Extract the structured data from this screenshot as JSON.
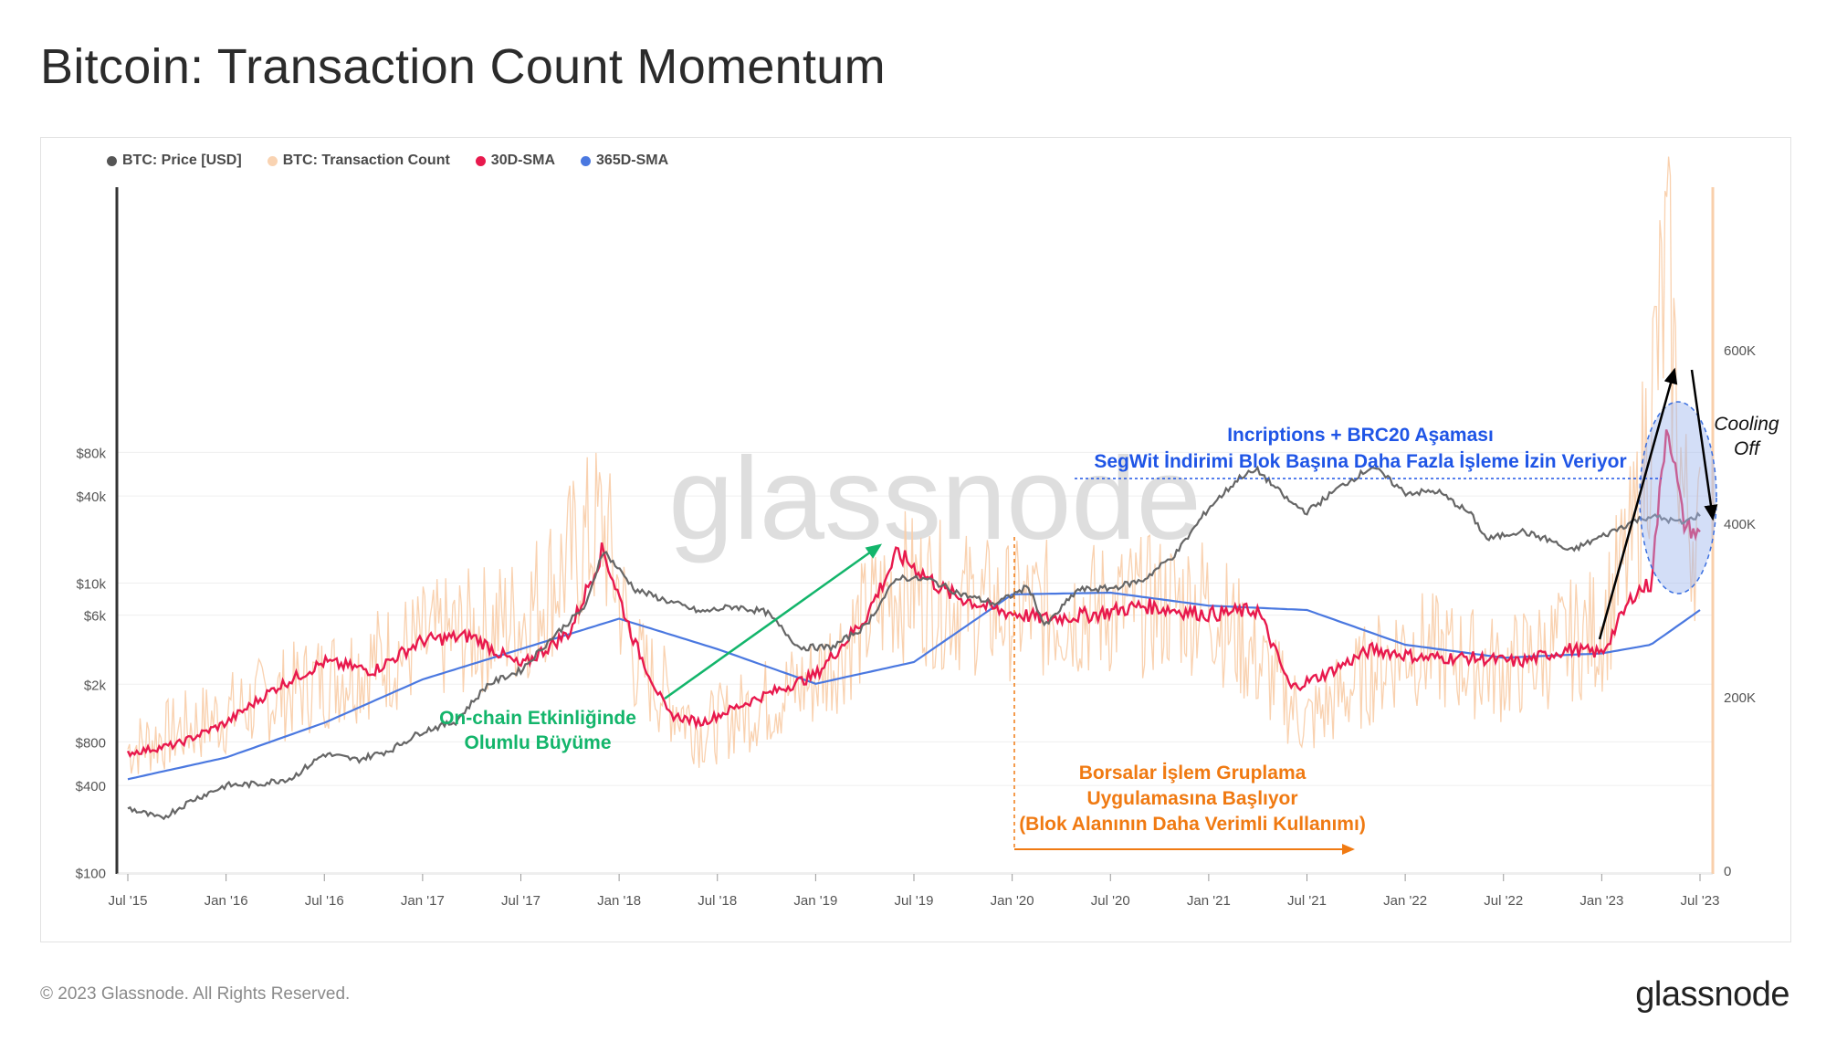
{
  "title": "Bitcoin: Transaction Count Momentum",
  "footer": {
    "copyright": "© 2023 Glassnode. All Rights Reserved.",
    "logo": "glassnode"
  },
  "watermark": "glassnode",
  "legend": [
    {
      "label": "BTC: Price [USD]",
      "color": "#555555"
    },
    {
      "label": "BTC: Transaction Count",
      "color": "#f9d3b2"
    },
    {
      "label": "30D-SMA",
      "color": "#e8194d"
    },
    {
      "label": "365D-SMA",
      "color": "#4a78e0"
    }
  ],
  "colors": {
    "price": "#666666",
    "tx": "#f9cfab",
    "sma30": "#e8194d",
    "sma365": "#4a78e0",
    "green": "#13b56b",
    "blue_text": "#1f55e6",
    "orange": "#f07a12"
  },
  "annotations": {
    "green_line1": "On-chain Etkinliğinde",
    "green_line2": "Olumlu Büyüme",
    "orange_line1": "Borsalar İşlem Gruplama",
    "orange_line2": "Uygulamasına Başlıyor",
    "orange_line3": "(Blok Alanının Daha Verimli Kullanımı)",
    "blue_line1": "Incriptions + BRC20 Aşaması",
    "blue_line2": "SegWit İndirimi Blok Başına Daha Fazla İşleme İzin Veriyor",
    "cooling_line1": "Cooling",
    "cooling_line2": "Off"
  },
  "chart_data": {
    "type": "line",
    "x_ticks": [
      "Jul '15",
      "Jan '16",
      "Jul '16",
      "Jan '17",
      "Jul '17",
      "Jan '18",
      "Jul '18",
      "Jan '19",
      "Jul '19",
      "Jan '20",
      "Jul '20",
      "Jan '21",
      "Jul '21",
      "Jan '22",
      "Jul '22",
      "Jan '23",
      "Jul '23"
    ],
    "y_left_ticks": [
      "$80k",
      "$40k",
      "$10k",
      "$6k",
      "$2k",
      "$800",
      "$400",
      "$100"
    ],
    "y_left_scale": "log",
    "y_right_ticks": [
      "600K",
      "400K",
      "200K",
      "0"
    ],
    "xlim": [
      "2015-07",
      "2023-07"
    ],
    "ylim_right": [
      0,
      800000
    ],
    "series": [
      {
        "name": "BTC: Price [USD]",
        "axis": "left",
        "x": [
          "2015-07",
          "2015-09",
          "2015-11",
          "2016-01",
          "2016-03",
          "2016-05",
          "2016-07",
          "2016-09",
          "2016-11",
          "2017-01",
          "2017-03",
          "2017-05",
          "2017-07",
          "2017-09",
          "2017-11",
          "2017-12",
          "2018-02",
          "2018-04",
          "2018-06",
          "2018-08",
          "2018-10",
          "2018-12",
          "2019-02",
          "2019-04",
          "2019-06",
          "2019-08",
          "2019-10",
          "2019-12",
          "2020-02",
          "2020-03",
          "2020-05",
          "2020-07",
          "2020-09",
          "2020-11",
          "2021-01",
          "2021-03",
          "2021-04",
          "2021-06",
          "2021-07",
          "2021-09",
          "2021-11",
          "2022-01",
          "2022-03",
          "2022-05",
          "2022-06",
          "2022-08",
          "2022-10",
          "2022-11",
          "2023-01",
          "2023-03",
          "2023-04",
          "2023-06",
          "2023-07"
        ],
        "values": [
          280,
          235,
          320,
          400,
          410,
          450,
          660,
          600,
          700,
          950,
          1100,
          2000,
          2500,
          4300,
          7000,
          17000,
          9000,
          7500,
          6300,
          6900,
          6300,
          3600,
          3600,
          5000,
          11000,
          10500,
          8300,
          7200,
          9500,
          5000,
          9000,
          9200,
          10500,
          16000,
          33000,
          55000,
          60000,
          36000,
          31000,
          46000,
          64000,
          42000,
          43000,
          30000,
          20000,
          23000,
          19500,
          16500,
          21000,
          27000,
          29000,
          26000,
          30000
        ]
      },
      {
        "name": "BTC: Transaction Count",
        "axis": "right",
        "x": [
          "2015-07",
          "2016-01",
          "2016-07",
          "2017-01",
          "2017-07",
          "2017-12",
          "2018-02",
          "2018-06",
          "2019-01",
          "2019-06",
          "2019-12",
          "2020-06",
          "2021-01",
          "2021-07",
          "2022-01",
          "2022-07",
          "2023-01",
          "2023-03",
          "2023-05",
          "2023-06",
          "2023-07"
        ],
        "values": [
          140000,
          180000,
          220000,
          260000,
          290000,
          400000,
          240000,
          160000,
          220000,
          330000,
          300000,
          300000,
          310000,
          170000,
          260000,
          230000,
          280000,
          380000,
          690000,
          420000,
          380000
        ]
      },
      {
        "name": "30D-SMA",
        "axis": "right",
        "x": [
          "2015-07",
          "2015-10",
          "2016-01",
          "2016-04",
          "2016-07",
          "2016-10",
          "2017-01",
          "2017-04",
          "2017-07",
          "2017-10",
          "2017-12",
          "2018-02",
          "2018-04",
          "2018-06",
          "2018-09",
          "2019-01",
          "2019-04",
          "2019-06",
          "2019-09",
          "2019-12",
          "2020-03",
          "2020-06",
          "2020-09",
          "2021-01",
          "2021-04",
          "2021-06",
          "2021-08",
          "2021-11",
          "2022-02",
          "2022-05",
          "2022-08",
          "2022-11",
          "2023-01",
          "2023-03",
          "2023-04",
          "2023-05",
          "2023-06",
          "2023-07"
        ],
        "values": [
          135000,
          145000,
          170000,
          210000,
          240000,
          230000,
          265000,
          270000,
          235000,
          275000,
          370000,
          260000,
          180000,
          170000,
          195000,
          225000,
          290000,
          365000,
          320000,
          300000,
          290000,
          295000,
          305000,
          295000,
          300000,
          210000,
          225000,
          255000,
          245000,
          245000,
          240000,
          255000,
          250000,
          320000,
          330000,
          520000,
          400000,
          385000
        ]
      },
      {
        "name": "365D-SMA",
        "axis": "right",
        "x": [
          "2015-07",
          "2016-01",
          "2016-07",
          "2017-01",
          "2017-07",
          "2018-01",
          "2018-07",
          "2019-01",
          "2019-07",
          "2020-01",
          "2020-07",
          "2021-01",
          "2021-07",
          "2022-01",
          "2022-07",
          "2023-01",
          "2023-04",
          "2023-07"
        ],
        "values": [
          105000,
          130000,
          170000,
          220000,
          255000,
          290000,
          255000,
          215000,
          240000,
          318000,
          320000,
          305000,
          300000,
          260000,
          245000,
          250000,
          260000,
          300000
        ]
      }
    ]
  }
}
